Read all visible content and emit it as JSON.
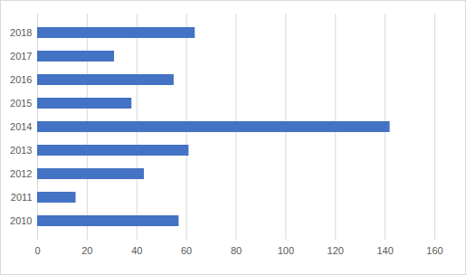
{
  "chart_data": {
    "type": "bar",
    "orientation": "horizontal",
    "categories": [
      "2010",
      "2011",
      "2012",
      "2013",
      "2014",
      "2015",
      "2016",
      "2017",
      "2018"
    ],
    "values": [
      57,
      15.5,
      43,
      61,
      142,
      38,
      55,
      31,
      63.5
    ],
    "color": "#4472c4",
    "xlim": [
      0,
      160
    ],
    "xticks": [
      0,
      20,
      40,
      60,
      80,
      100,
      120,
      140,
      160
    ],
    "grid": true
  }
}
